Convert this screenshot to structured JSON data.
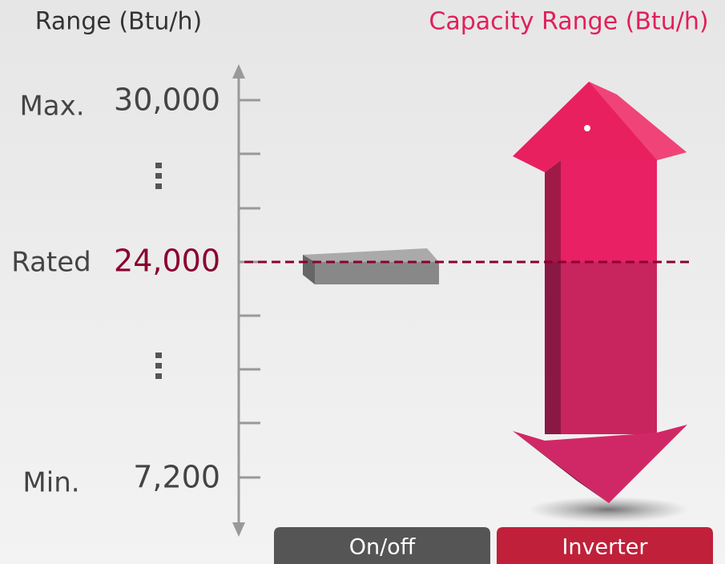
{
  "header": {
    "left_title": "Range (Btu/h)",
    "right_title": "Capacity Range (Btu/h)"
  },
  "scale": {
    "levels": [
      {
        "label": "Max.",
        "value": "30,000"
      },
      {
        "label": "Rated",
        "value": "24,000"
      },
      {
        "label": "Min.",
        "value": "7,200"
      }
    ]
  },
  "columns": [
    "On/off",
    "Inverter"
  ]
}
